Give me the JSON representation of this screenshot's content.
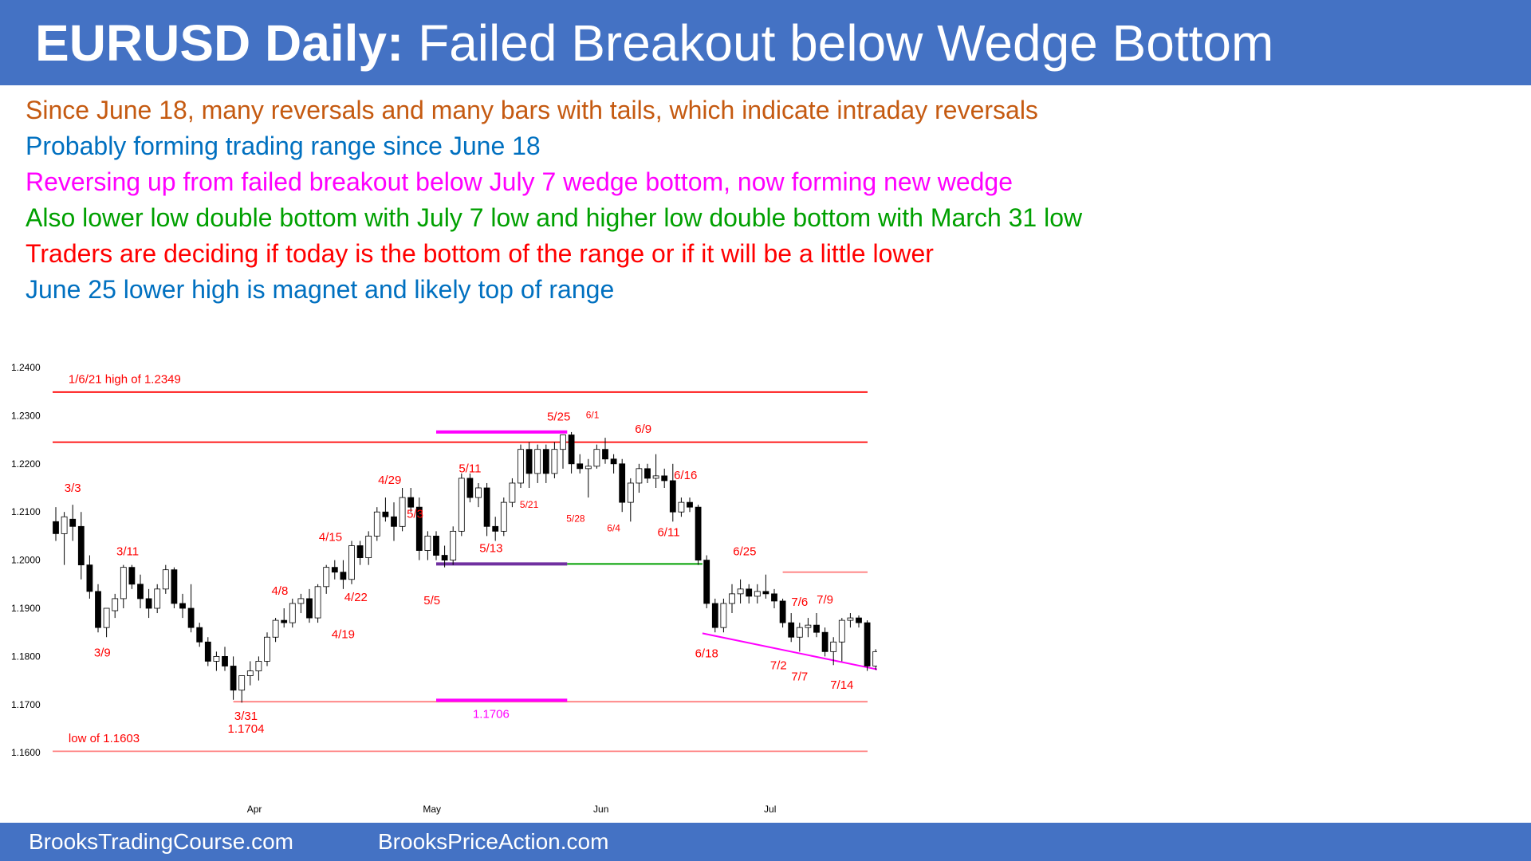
{
  "header": {
    "title_bold": "EURUSD Daily:",
    "title_rest": " Failed Breakout below Wedge Bottom"
  },
  "bullets": [
    {
      "text": "Since June 18, many reversals and many bars with tails, which indicate intraday reversals",
      "color": "#c55a11"
    },
    {
      "text": "Probably forming trading range since June 18",
      "color": "#0070c0"
    },
    {
      "text": "Reversing up from failed breakout below July 7 wedge bottom, now forming new wedge",
      "color": "#ff00ff"
    },
    {
      "text": "Also lower low double bottom with July 7 low and higher low double bottom with March 31 low",
      "color": "#00a000"
    },
    {
      "text": "Traders are deciding if today is the bottom of the range or if it will be a little lower",
      "color": "#ff0000"
    },
    {
      "text": "June 25 lower high is magnet and likely top of range",
      "color": "#0070c0"
    }
  ],
  "footer": {
    "left": "BrooksTradingCourse.com",
    "right": "BrooksPriceAction.com"
  },
  "chart_data": {
    "type": "candlestick",
    "title": "",
    "ylim": [
      1.16,
      1.24
    ],
    "yticks": [
      "1.2400",
      "1.2300",
      "1.2200",
      "1.2100",
      "1.2000",
      "1.1900",
      "1.1800",
      "1.1700",
      "1.1600"
    ],
    "xticks": [
      {
        "label": "Apr",
        "bar": 23.5
      },
      {
        "label": "May",
        "bar": 44.5
      },
      {
        "label": "Jun",
        "bar": 64.5
      },
      {
        "label": "Jul",
        "bar": 84.5
      }
    ],
    "colors": {
      "bull": "#ffffff",
      "bear": "#000000",
      "red": "#ff0000",
      "magenta": "#ff00ff",
      "purple": "#7030a0",
      "green": "#00a000",
      "pink": "#ff8080"
    },
    "candles": [
      [
        1.208,
        1.211,
        1.204,
        1.2055
      ],
      [
        1.2055,
        1.21,
        1.199,
        1.209
      ],
      [
        1.2085,
        1.2115,
        1.204,
        1.207
      ],
      [
        1.207,
        1.21,
        1.196,
        1.199
      ],
      [
        1.199,
        1.201,
        1.192,
        1.1935
      ],
      [
        1.1935,
        1.195,
        1.185,
        1.186
      ],
      [
        1.186,
        1.19,
        1.184,
        1.19
      ],
      [
        1.1895,
        1.193,
        1.188,
        1.192
      ],
      [
        1.192,
        1.199,
        1.19,
        1.1985
      ],
      [
        1.1985,
        1.199,
        1.194,
        1.195
      ],
      [
        1.195,
        1.197,
        1.19,
        1.192
      ],
      [
        1.192,
        1.194,
        1.188,
        1.19
      ],
      [
        1.19,
        1.195,
        1.189,
        1.194
      ],
      [
        1.194,
        1.199,
        1.193,
        1.198
      ],
      [
        1.198,
        1.1985,
        1.19,
        1.191
      ],
      [
        1.191,
        1.193,
        1.188,
        1.19
      ],
      [
        1.19,
        1.195,
        1.185,
        1.186
      ],
      [
        1.186,
        1.187,
        1.182,
        1.183
      ],
      [
        1.183,
        1.184,
        1.178,
        1.179
      ],
      [
        1.179,
        1.181,
        1.177,
        1.18
      ],
      [
        1.18,
        1.182,
        1.177,
        1.178
      ],
      [
        1.178,
        1.18,
        1.171,
        1.173
      ],
      [
        1.173,
        1.176,
        1.1704,
        1.176
      ],
      [
        1.176,
        1.179,
        1.174,
        1.177
      ],
      [
        1.177,
        1.18,
        1.175,
        1.179
      ],
      [
        1.179,
        1.185,
        1.178,
        1.184
      ],
      [
        1.184,
        1.188,
        1.183,
        1.1875
      ],
      [
        1.1875,
        1.19,
        1.186,
        1.187
      ],
      [
        1.187,
        1.192,
        1.186,
        1.191
      ],
      [
        1.191,
        1.193,
        1.189,
        1.192
      ],
      [
        1.192,
        1.194,
        1.187,
        1.188
      ],
      [
        1.188,
        1.195,
        1.187,
        1.1945
      ],
      [
        1.1945,
        1.199,
        1.193,
        1.1985
      ],
      [
        1.1985,
        1.2,
        1.196,
        1.1975
      ],
      [
        1.1975,
        1.2,
        1.194,
        1.196
      ],
      [
        1.196,
        1.204,
        1.195,
        1.203
      ],
      [
        1.203,
        1.204,
        1.199,
        1.2005
      ],
      [
        1.2005,
        1.206,
        1.199,
        1.205
      ],
      [
        1.205,
        1.211,
        1.204,
        1.21
      ],
      [
        1.21,
        1.213,
        1.208,
        1.209
      ],
      [
        1.209,
        1.212,
        1.204,
        1.207
      ],
      [
        1.207,
        1.215,
        1.206,
        1.213
      ],
      [
        1.213,
        1.215,
        1.21,
        1.211
      ],
      [
        1.211,
        1.213,
        1.2,
        1.202
      ],
      [
        1.202,
        1.206,
        1.2,
        1.205
      ],
      [
        1.205,
        1.206,
        1.2,
        1.201
      ],
      [
        1.201,
        1.203,
        1.1985,
        1.2
      ],
      [
        1.2,
        1.207,
        1.199,
        1.206
      ],
      [
        1.206,
        1.218,
        1.205,
        1.217
      ],
      [
        1.217,
        1.218,
        1.212,
        1.213
      ],
      [
        1.213,
        1.216,
        1.211,
        1.215
      ],
      [
        1.215,
        1.216,
        1.205,
        1.207
      ],
      [
        1.207,
        1.209,
        1.204,
        1.206
      ],
      [
        1.206,
        1.213,
        1.205,
        1.212
      ],
      [
        1.212,
        1.217,
        1.211,
        1.216
      ],
      [
        1.216,
        1.224,
        1.215,
        1.223
      ],
      [
        1.223,
        1.2245,
        1.215,
        1.218
      ],
      [
        1.218,
        1.224,
        1.216,
        1.223
      ],
      [
        1.223,
        1.224,
        1.216,
        1.218
      ],
      [
        1.218,
        1.2245,
        1.217,
        1.223
      ],
      [
        1.223,
        1.226,
        1.219,
        1.226
      ],
      [
        1.226,
        1.2266,
        1.218,
        1.22
      ],
      [
        1.22,
        1.222,
        1.218,
        1.219
      ],
      [
        1.219,
        1.221,
        1.213,
        1.2195
      ],
      [
        1.2195,
        1.224,
        1.219,
        1.223
      ],
      [
        1.223,
        1.2254,
        1.22,
        1.221
      ],
      [
        1.221,
        1.222,
        1.218,
        1.22
      ],
      [
        1.22,
        1.221,
        1.21,
        1.212
      ],
      [
        1.212,
        1.217,
        1.208,
        1.216
      ],
      [
        1.216,
        1.22,
        1.214,
        1.219
      ],
      [
        1.219,
        1.22,
        1.216,
        1.217
      ],
      [
        1.217,
        1.222,
        1.215,
        1.2175
      ],
      [
        1.2175,
        1.219,
        1.215,
        1.2165
      ],
      [
        1.2165,
        1.22,
        1.208,
        1.21
      ],
      [
        1.21,
        1.213,
        1.209,
        1.212
      ],
      [
        1.212,
        1.213,
        1.21,
        1.211
      ],
      [
        1.211,
        1.2115,
        1.199,
        1.2
      ],
      [
        1.2,
        1.201,
        1.19,
        1.191
      ],
      [
        1.191,
        1.192,
        1.185,
        1.186
      ],
      [
        1.186,
        1.192,
        1.185,
        1.191
      ],
      [
        1.191,
        1.195,
        1.189,
        1.193
      ],
      [
        1.193,
        1.196,
        1.191,
        1.194
      ],
      [
        1.194,
        1.195,
        1.191,
        1.1925
      ],
      [
        1.1925,
        1.195,
        1.191,
        1.1935
      ],
      [
        1.1935,
        1.197,
        1.192,
        1.193
      ],
      [
        1.193,
        1.194,
        1.19,
        1.1915
      ],
      [
        1.1915,
        1.192,
        1.186,
        1.187
      ],
      [
        1.187,
        1.189,
        1.183,
        1.184
      ],
      [
        1.184,
        1.187,
        1.181,
        1.186
      ],
      [
        1.186,
        1.188,
        1.184,
        1.1865
      ],
      [
        1.1865,
        1.189,
        1.184,
        1.185
      ],
      [
        1.185,
        1.186,
        1.18,
        1.181
      ],
      [
        1.181,
        1.184,
        1.1782,
        1.183
      ],
      [
        1.183,
        1.188,
        1.179,
        1.1875
      ],
      [
        1.1875,
        1.189,
        1.186,
        1.188
      ],
      [
        1.188,
        1.1885,
        1.186,
        1.187
      ],
      [
        1.187,
        1.1875,
        1.177,
        1.178
      ],
      [
        1.178,
        1.1815,
        1.1772,
        1.181
      ]
    ],
    "lines": [
      {
        "kind": "hline",
        "from": 0,
        "to": "end",
        "y": 1.2349,
        "color": "red"
      },
      {
        "kind": "hline",
        "from": 0,
        "to": "end",
        "y": 1.2245,
        "color": "red"
      },
      {
        "kind": "hline",
        "from": 21,
        "to": "end",
        "y": 1.1706,
        "color": "pink"
      },
      {
        "kind": "hline",
        "from": 0,
        "to": "end",
        "y": 1.1603,
        "color": "pink"
      },
      {
        "kind": "hline",
        "from": 86,
        "to": "end",
        "y": 1.1975,
        "color": "pink"
      },
      {
        "kind": "hline",
        "from": 96,
        "to": "end",
        "y": 1.1782,
        "color": "pink"
      },
      {
        "kind": "seg",
        "x1": 45,
        "y1": 1.1992,
        "x2": 60.5,
        "y2": 1.1992,
        "color": "purple",
        "width": 4
      },
      {
        "kind": "seg",
        "x1": 60.5,
        "y1": 1.1992,
        "x2": 76.5,
        "y2": 1.1992,
        "color": "green",
        "width": 2
      },
      {
        "kind": "seg",
        "x1": 45,
        "y1": 1.2266,
        "x2": 60.5,
        "y2": 1.2266,
        "color": "magenta",
        "width": 4
      },
      {
        "kind": "seg",
        "x1": 45,
        "y1": 1.1709,
        "x2": 60.5,
        "y2": 1.1709,
        "color": "magenta",
        "width": 4
      },
      {
        "kind": "seg",
        "x1": 76.5,
        "y1": 1.1848,
        "x2": 97.2,
        "y2": 1.1773,
        "color": "magenta",
        "width": 2
      }
    ],
    "annotations": [
      {
        "text": "1/6/21 high of 1.2349",
        "bar": 1.5,
        "price": 1.2368,
        "size": 15,
        "color": "red",
        "anchor": "start"
      },
      {
        "text": "low of 1.1603",
        "bar": 1.5,
        "price": 1.1622,
        "size": 15,
        "color": "red",
        "anchor": "start"
      },
      {
        "text": "3/3",
        "bar": 2,
        "price": 1.2142,
        "size": 15,
        "color": "red",
        "anchor": "middle"
      },
      {
        "text": "3/11",
        "bar": 8.5,
        "price": 1.201,
        "size": 15,
        "color": "red",
        "anchor": "middle"
      },
      {
        "text": "3/9",
        "bar": 5.5,
        "price": 1.18,
        "size": 15,
        "color": "red",
        "anchor": "middle"
      },
      {
        "text": "3/31",
        "bar": 22.5,
        "price": 1.1668,
        "size": 15,
        "color": "red",
        "anchor": "middle"
      },
      {
        "text": "1.1704",
        "bar": 22.5,
        "price": 1.1642,
        "size": 15,
        "color": "red",
        "anchor": "middle"
      },
      {
        "text": "4/8",
        "bar": 26.5,
        "price": 1.1928,
        "size": 15,
        "color": "red",
        "anchor": "middle"
      },
      {
        "text": "4/15",
        "bar": 32.5,
        "price": 1.204,
        "size": 15,
        "color": "red",
        "anchor": "middle"
      },
      {
        "text": "4/22",
        "bar": 35.5,
        "price": 1.1915,
        "size": 15,
        "color": "red",
        "anchor": "middle"
      },
      {
        "text": "4/19",
        "bar": 34,
        "price": 1.1838,
        "size": 15,
        "color": "red",
        "anchor": "middle"
      },
      {
        "text": "4/29",
        "bar": 39.5,
        "price": 1.2158,
        "size": 15,
        "color": "red",
        "anchor": "middle"
      },
      {
        "text": "5/3",
        "bar": 42.5,
        "price": 1.2088,
        "size": 15,
        "color": "red",
        "anchor": "middle"
      },
      {
        "text": "5/5",
        "bar": 44.5,
        "price": 1.1908,
        "size": 15,
        "color": "red",
        "anchor": "middle"
      },
      {
        "text": "5/11",
        "bar": 49,
        "price": 1.2182,
        "size": 15,
        "color": "red",
        "anchor": "middle"
      },
      {
        "text": "5/13",
        "bar": 51.5,
        "price": 1.2017,
        "size": 15,
        "color": "red",
        "anchor": "middle"
      },
      {
        "text": "5/21",
        "bar": 56,
        "price": 1.2109,
        "size": 12,
        "color": "red",
        "anchor": "middle"
      },
      {
        "text": "5/25",
        "bar": 59.5,
        "price": 1.229,
        "size": 15,
        "color": "red",
        "anchor": "middle"
      },
      {
        "text": "5/28",
        "bar": 61.5,
        "price": 1.208,
        "size": 12,
        "color": "red",
        "anchor": "middle"
      },
      {
        "text": "6/1",
        "bar": 63.5,
        "price": 1.2295,
        "size": 12,
        "color": "red",
        "anchor": "middle"
      },
      {
        "text": "6/4",
        "bar": 66,
        "price": 1.206,
        "size": 12,
        "color": "red",
        "anchor": "middle"
      },
      {
        "text": "6/9",
        "bar": 69.5,
        "price": 1.2264,
        "size": 15,
        "color": "red",
        "anchor": "middle"
      },
      {
        "text": "6/16",
        "bar": 74.5,
        "price": 1.2168,
        "size": 15,
        "color": "red",
        "anchor": "middle"
      },
      {
        "text": "6/11",
        "bar": 72.5,
        "price": 1.205,
        "size": 15,
        "color": "red",
        "anchor": "middle"
      },
      {
        "text": "6/18",
        "bar": 77,
        "price": 1.1798,
        "size": 15,
        "color": "red",
        "anchor": "middle"
      },
      {
        "text": "6/25",
        "bar": 81.5,
        "price": 1.201,
        "size": 15,
        "color": "red",
        "anchor": "middle"
      },
      {
        "text": "7/2",
        "bar": 85.5,
        "price": 1.1773,
        "size": 15,
        "color": "red",
        "anchor": "middle"
      },
      {
        "text": "7/6",
        "bar": 88,
        "price": 1.1905,
        "size": 15,
        "color": "red",
        "anchor": "middle"
      },
      {
        "text": "7/9",
        "bar": 91,
        "price": 1.191,
        "size": 15,
        "color": "red",
        "anchor": "middle"
      },
      {
        "text": "7/7",
        "bar": 88,
        "price": 1.175,
        "size": 15,
        "color": "red",
        "anchor": "middle"
      },
      {
        "text": "7/14",
        "bar": 93,
        "price": 1.1733,
        "size": 15,
        "color": "red",
        "anchor": "middle"
      },
      {
        "text": "1.1706",
        "bar": 51.5,
        "price": 1.1672,
        "size": 15,
        "color": "magenta",
        "anchor": "middle"
      }
    ]
  }
}
